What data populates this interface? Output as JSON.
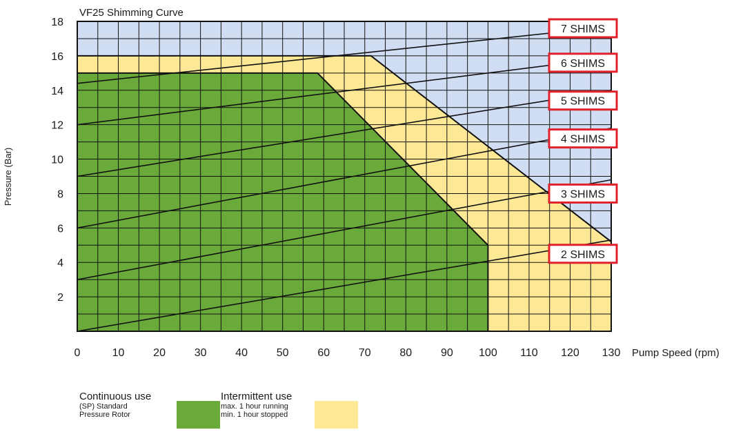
{
  "chart_data": {
    "type": "area",
    "title": "VF25 Shimming Curve",
    "xlabel": "Pump Speed (rpm)",
    "ylabel": "Pressure (Bar)",
    "xlim": [
      0,
      130
    ],
    "ylim": [
      0,
      18
    ],
    "x_ticks": [
      "0",
      "10",
      "20",
      "30",
      "40",
      "50",
      "60",
      "70",
      "80",
      "90",
      "100",
      "110",
      "120",
      "130"
    ],
    "y_ticks": [
      "2",
      "4",
      "6",
      "8",
      "10",
      "12",
      "14",
      "16",
      "18"
    ],
    "grid": true,
    "regions": [
      {
        "name": "Continuous use",
        "color": "#6aaa3a",
        "points": [
          [
            0,
            15
          ],
          [
            58.5,
            15
          ],
          [
            100,
            5
          ],
          [
            100,
            0
          ],
          [
            0,
            0
          ]
        ]
      },
      {
        "name": "Intermittent use",
        "color": "#fde896",
        "points": [
          [
            0,
            16
          ],
          [
            71.5,
            16
          ],
          [
            130,
            5.2
          ],
          [
            130,
            0
          ],
          [
            0,
            0
          ]
        ]
      }
    ],
    "background_color": "#d1ddf2",
    "shim_lines": [
      {
        "label": "2 SHIMS",
        "start": [
          0,
          0
        ],
        "end": [
          130,
          5.3
        ]
      },
      {
        "label": "3 SHIMS",
        "start": [
          0,
          3
        ],
        "end": [
          130,
          8.8
        ]
      },
      {
        "label": "4 SHIMS",
        "start": [
          0,
          6
        ],
        "end": [
          130,
          11.8
        ]
      },
      {
        "label": "5 SHIMS",
        "start": [
          0,
          9
        ],
        "end": [
          130,
          14.0
        ]
      },
      {
        "label": "6 SHIMS",
        "start": [
          0,
          12
        ],
        "end": [
          130,
          15.9
        ]
      },
      {
        "label": "7 SHIMS",
        "start": [
          0,
          14.4
        ],
        "end": [
          130,
          17.7
        ]
      }
    ],
    "label_box_color": "#e0202a"
  },
  "legend": {
    "continuous": {
      "title": "Continuous use",
      "line1": "(SP) Standard",
      "line2": "Pressure Rotor",
      "color": "#6aaa3a"
    },
    "intermittent": {
      "title": "Intermittent use",
      "line1": "max. 1 hour running",
      "line2": "min. 1 hour stopped",
      "color": "#fde896"
    }
  }
}
